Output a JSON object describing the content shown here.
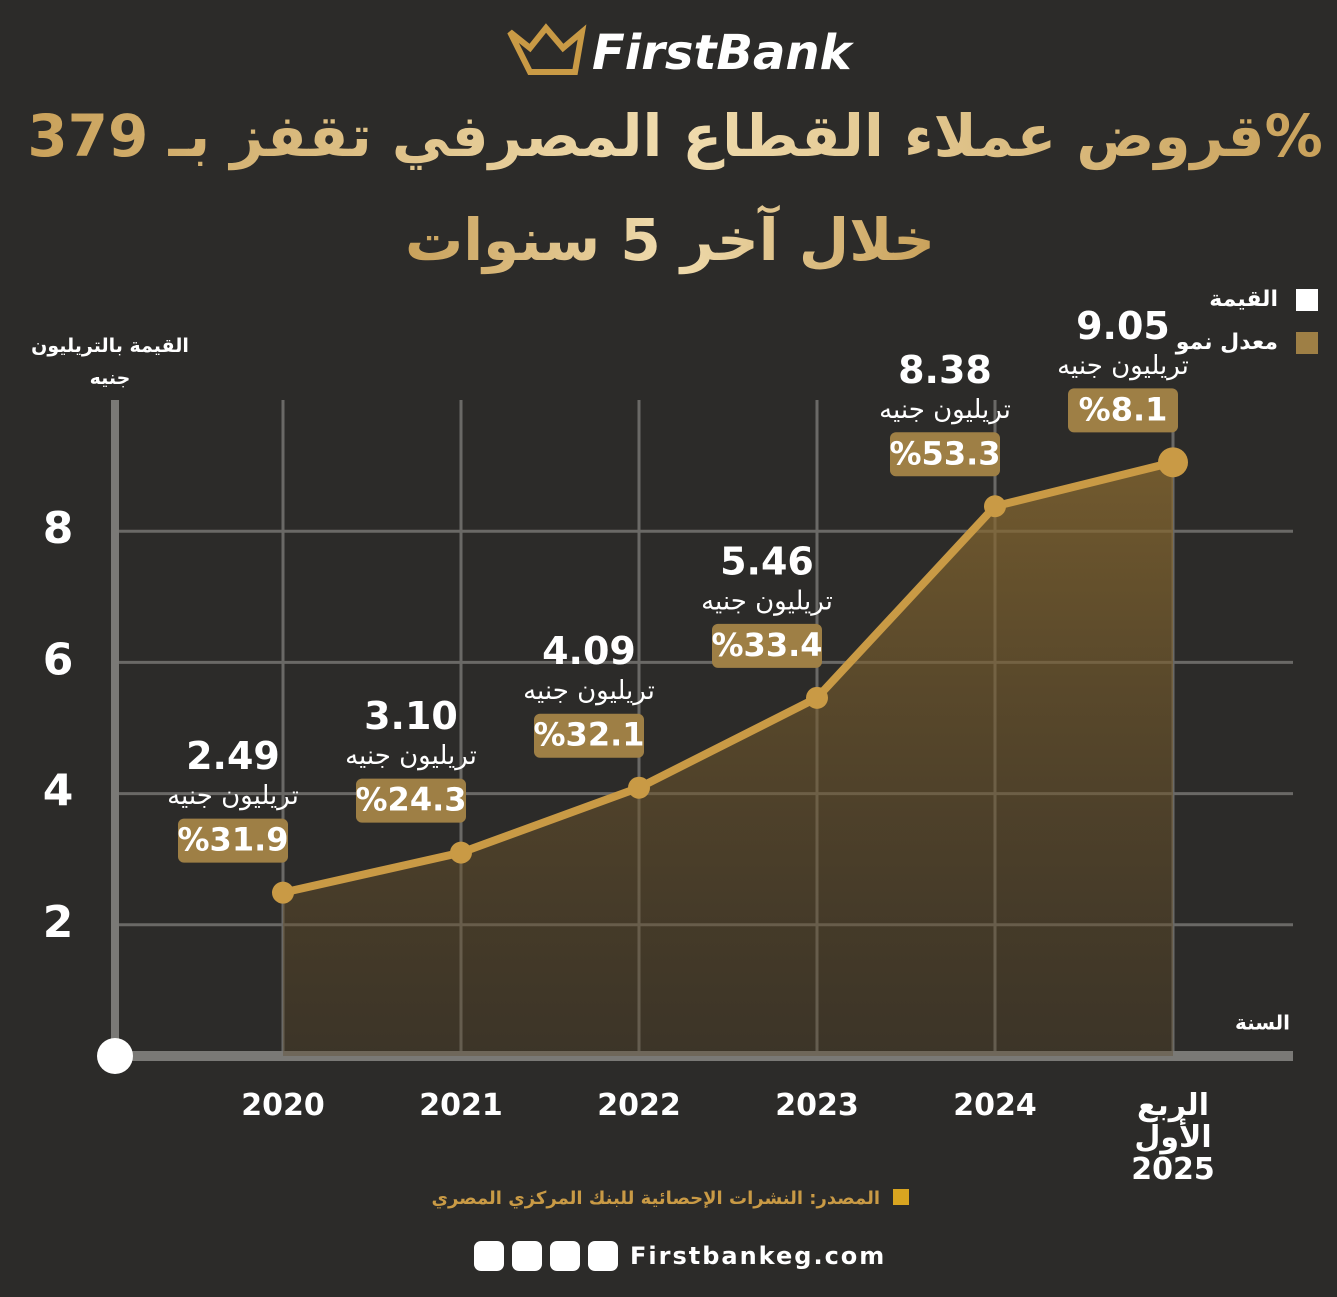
{
  "brand": "FirstBank",
  "chart_data": {
    "type": "line",
    "title": [
      "قروض عملاء القطاع المصرفي تقفز بـ 379%",
      "خلال آخر 5 سنوات"
    ],
    "y_label": "القيمة بالتريليون جنيه",
    "x_label": "السنة",
    "unit_label": "تريليون جنيه",
    "categories": [
      "2020",
      "2021",
      "2022",
      "2023",
      "2024",
      "الربع الأول 2025"
    ],
    "series": [
      {
        "name": "القيمة",
        "color": "#ffffff",
        "line_color": "#c99a45",
        "values": [
          2.49,
          3.1,
          4.09,
          5.46,
          8.38,
          9.05
        ],
        "value_labels": [
          "2.49",
          "3.10",
          "4.09",
          "5.46",
          "8.38",
          "9.05"
        ]
      },
      {
        "name": "معدل نمو",
        "color": "#9e7f45",
        "values": [
          31.9,
          24.3,
          32.1,
          33.4,
          53.3,
          8.1
        ],
        "value_labels": [
          "%31.9",
          "%24.3",
          "%32.1",
          "%33.4",
          "%53.3",
          "%8.1"
        ]
      }
    ],
    "ylim": [
      0,
      10
    ],
    "yticks": [
      2,
      4,
      6,
      8
    ],
    "grid": true,
    "legend": "top-right"
  },
  "source": "المصدر: النشرات الإحصائية للبنك المركزي المصري",
  "website": "Firstbankeg.com"
}
